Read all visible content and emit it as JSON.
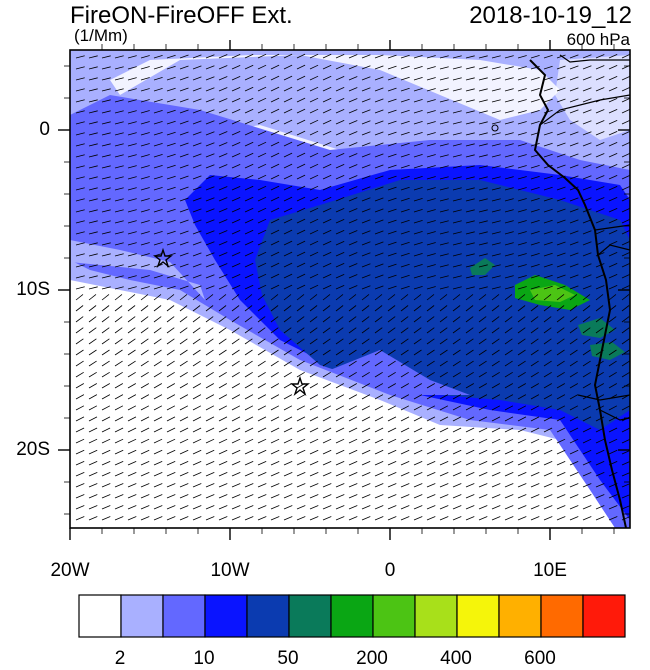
{
  "header": {
    "title": "FireON-FireOFF Ext.",
    "units": "(1/Mm)",
    "datetime": "2018-10-19_12",
    "level": "600 hPa"
  },
  "map": {
    "lat_ticks": [
      "0",
      "10S",
      "20S"
    ],
    "lon_ticks": [
      "20W",
      "10W",
      "0",
      "10E"
    ],
    "markers": [
      "star",
      "star"
    ]
  },
  "colorbar": {
    "colors": [
      "#ffffff",
      "#a9b0ff",
      "#6368ff",
      "#0a14ff",
      "#0b3bb0",
      "#0a7a5a",
      "#0aa614",
      "#4cc414",
      "#a8e01a",
      "#f5f50a",
      "#ffb000",
      "#ff6a00",
      "#ff1a0a"
    ],
    "labels": [
      "2",
      "10",
      "50",
      "200",
      "400",
      "600"
    ]
  },
  "colors": {
    "background": "#ffffff",
    "extinction_low": "#a9b0ff",
    "extinction_mid": "#6368ff",
    "extinction_high": "#0a14ff",
    "extinction_peak": "#0b3bb0",
    "fire_green": "#4cc414",
    "land_outline": "#000000"
  }
}
